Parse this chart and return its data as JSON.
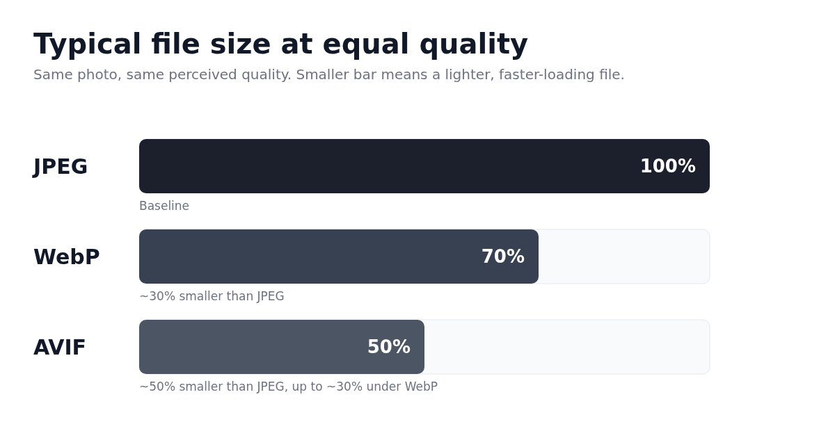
{
  "chart_data": {
    "type": "bar",
    "orientation": "horizontal",
    "title": "Typical file size at equal quality",
    "subtitle": "Same photo, same perceived quality. Smaller bar means a lighter, faster-loading file.",
    "categories": [
      "JPEG",
      "WebP",
      "AVIF"
    ],
    "values": [
      100,
      70,
      50
    ],
    "colors": [
      "#1c202c",
      "#374151",
      "#4b5563"
    ],
    "value_labels": [
      "100%",
      "70%",
      "50%"
    ],
    "xlim": [
      0,
      100
    ],
    "tick_labels": "y",
    "grid": false,
    "annotations": [
      "Baseline",
      "~30% smaller than JPEG",
      "~50% smaller than JPEG, up to ~30% under WebP"
    ]
  }
}
